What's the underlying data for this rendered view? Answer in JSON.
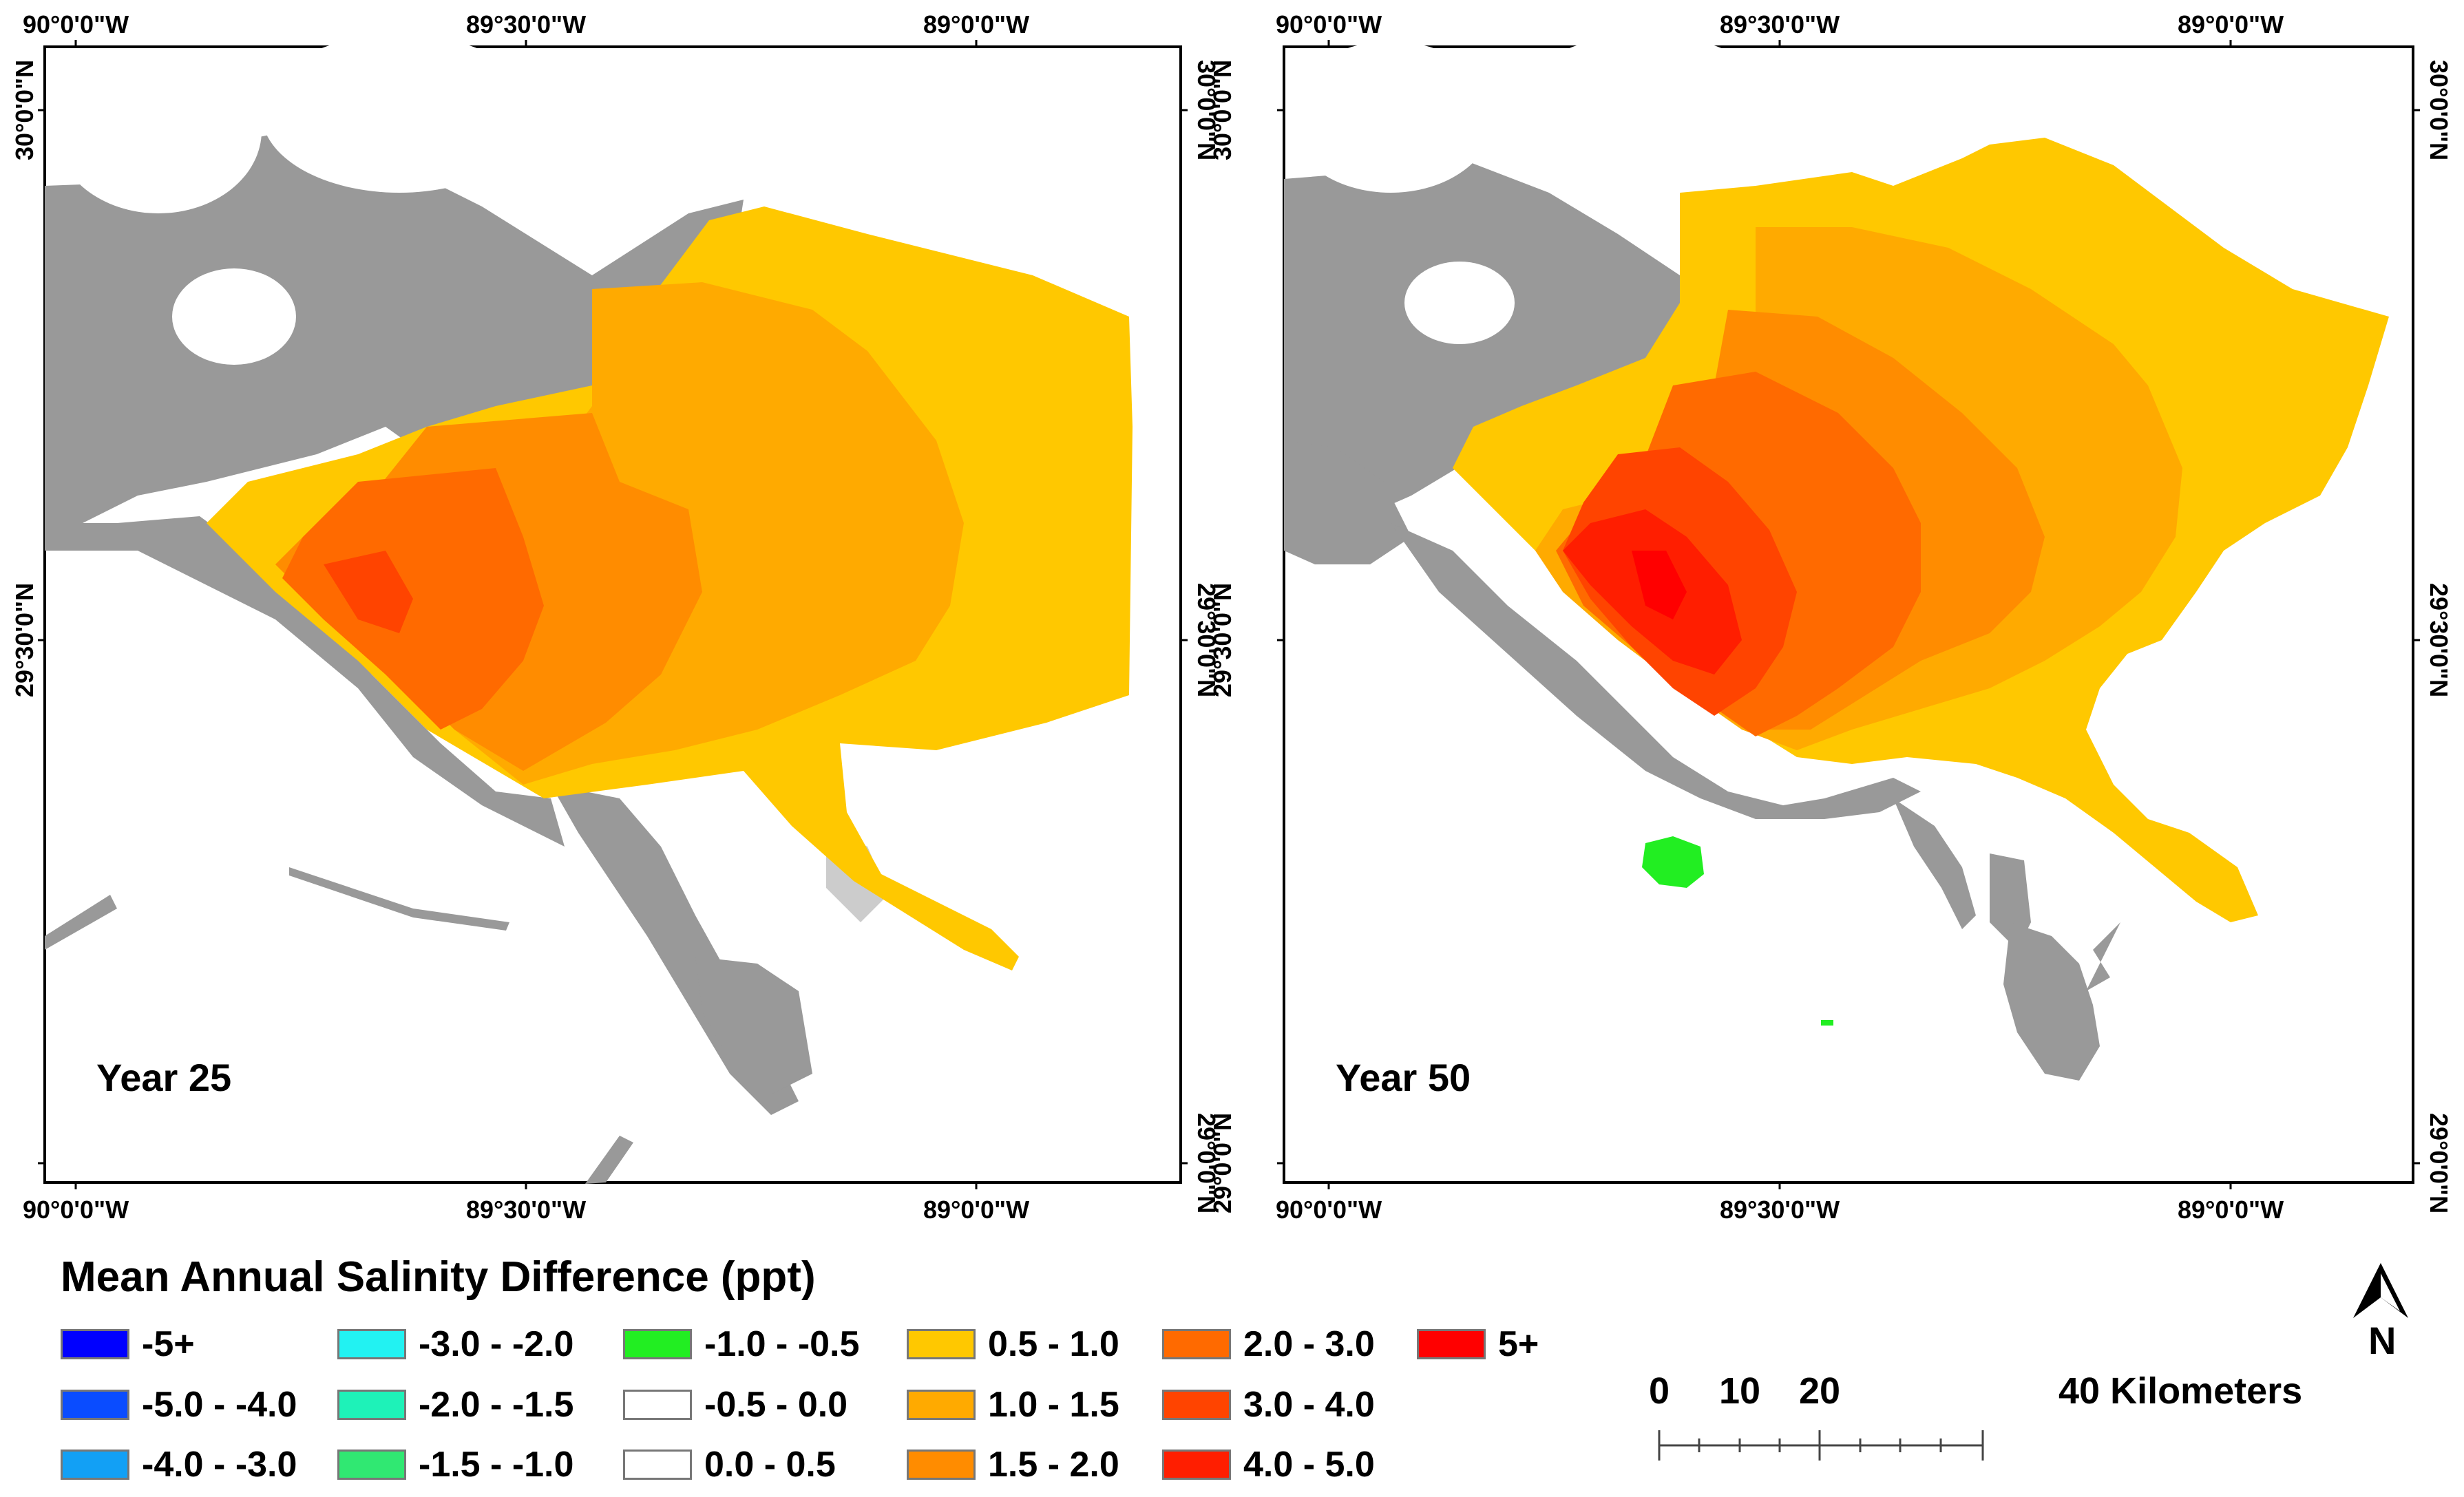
{
  "maps": [
    {
      "label": "Year 25",
      "top_ticks": [
        "90°0'0\"W",
        "89°30'0\"W",
        "89°0'0\"W"
      ],
      "bottom_ticks": [
        "90°0'0\"W",
        "89°30'0\"W",
        "89°0'0\"W"
      ],
      "right_ticks": [
        "30°0'0\"N",
        "29°30'0\"N",
        "29°0'0\"N"
      ],
      "left_ticks": [
        "30°0'0\"N",
        "29°30'0\"N"
      ]
    },
    {
      "label": "Year 50",
      "top_ticks": [
        "90°0'0\"W",
        "89°30'0\"W",
        "89°0'0\"W"
      ],
      "bottom_ticks": [
        "90°0'0\"W",
        "89°30'0\"W",
        "89°0'0\"W"
      ],
      "right_ticks": [
        "30°0'0\"N",
        "29°30'0\"N",
        "29°0'0\"N"
      ],
      "left_ticks": [
        "30°0'0\"N",
        "29°30'0\"N",
        "29°0'0\"N"
      ]
    }
  ],
  "legend": {
    "title": "Mean Annual Salinity Difference (ppt)",
    "columns": [
      [
        {
          "label": "-5+",
          "color": "#0000ff"
        },
        {
          "label": "-5.0 - -4.0",
          "color": "#0a4cff"
        },
        {
          "label": "-4.0 - -3.0",
          "color": "#12a0f5"
        }
      ],
      [
        {
          "label": "-3.0 - -2.0",
          "color": "#22f2f2"
        },
        {
          "label": "-2.0 - -1.5",
          "color": "#1ef2b8"
        },
        {
          "label": "-1.5 - -1.0",
          "color": "#30e872"
        }
      ],
      [
        {
          "label": "-1.0 - -0.5",
          "color": "#22ee22"
        },
        {
          "label": "-0.5 - 0.0",
          "color": "#ffffff"
        },
        {
          "label": "0.0 - 0.5",
          "color": "#ffffff"
        }
      ],
      [
        {
          "label": "0.5 - 1.0",
          "color": "#ffc800"
        },
        {
          "label": "1.0 - 1.5",
          "color": "#ffaa00"
        },
        {
          "label": "1.5 - 2.0",
          "color": "#ff8c00"
        }
      ],
      [
        {
          "label": "2.0 - 3.0",
          "color": "#ff6a00"
        },
        {
          "label": "3.0 - 4.0",
          "color": "#ff4400"
        },
        {
          "label": "4.0 - 5.0",
          "color": "#ff1e00"
        }
      ],
      [
        {
          "label": "5+",
          "color": "#ff0000"
        }
      ]
    ]
  },
  "scale_bar": {
    "labels": [
      "0",
      "10",
      "20",
      "40 Kilometers"
    ]
  },
  "north_arrow": {
    "label": "N"
  },
  "colors": {
    "land": "#999999",
    "frame": "#000000"
  }
}
